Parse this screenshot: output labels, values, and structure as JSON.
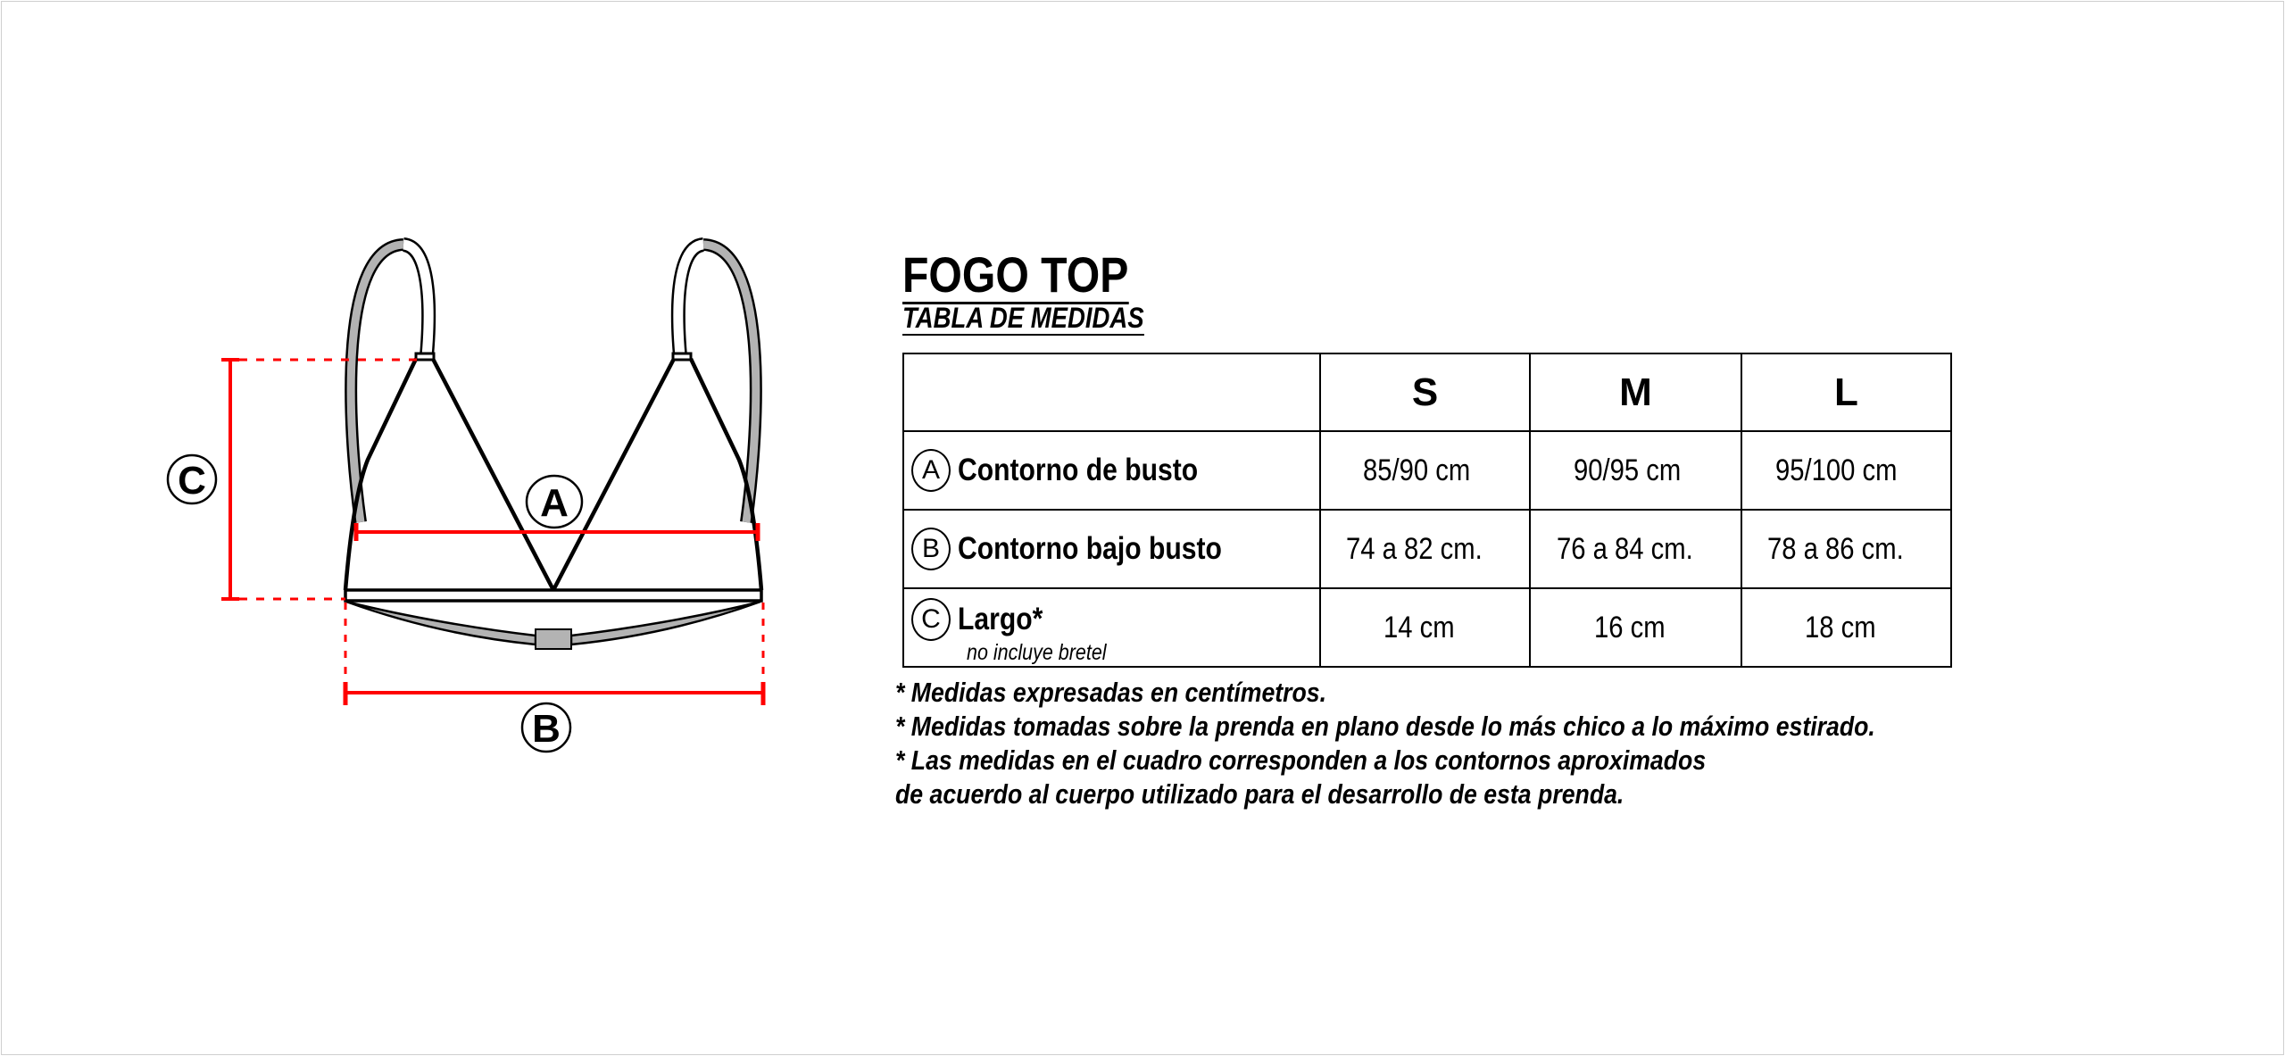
{
  "title": "FOGO TOP",
  "subtitle": "TABLA DE MEDIDAS",
  "diagram": {
    "labels": {
      "a": "A",
      "b": "B",
      "c": "C"
    },
    "colors": {
      "measure": "#ff0000",
      "strap": "#b3b3b3",
      "outline": "#000000"
    }
  },
  "table": {
    "sizes": [
      "S",
      "M",
      "L"
    ],
    "rows": [
      {
        "letter": "A",
        "label": "Contorno de busto",
        "note": "",
        "values": [
          "85/90 cm",
          "90/95 cm",
          "95/100 cm"
        ]
      },
      {
        "letter": "B",
        "label": "Contorno bajo busto",
        "note": "",
        "values": [
          "74 a 82 cm.",
          "76 a 84 cm.",
          "78 a 86 cm."
        ]
      },
      {
        "letter": "C",
        "label": "Largo*",
        "note": "no incluye bretel",
        "values": [
          "14 cm",
          "16 cm",
          "18 cm"
        ]
      }
    ]
  },
  "notes": [
    "* Medidas expresadas en centímetros.",
    "* Medidas tomadas sobre la prenda en plano desde lo más chico a lo máximo estirado.",
    "* Las medidas en el cuadro corresponden a los contornos aproximados",
    "de acuerdo al cuerpo utilizado para el desarrollo de esta prenda."
  ]
}
